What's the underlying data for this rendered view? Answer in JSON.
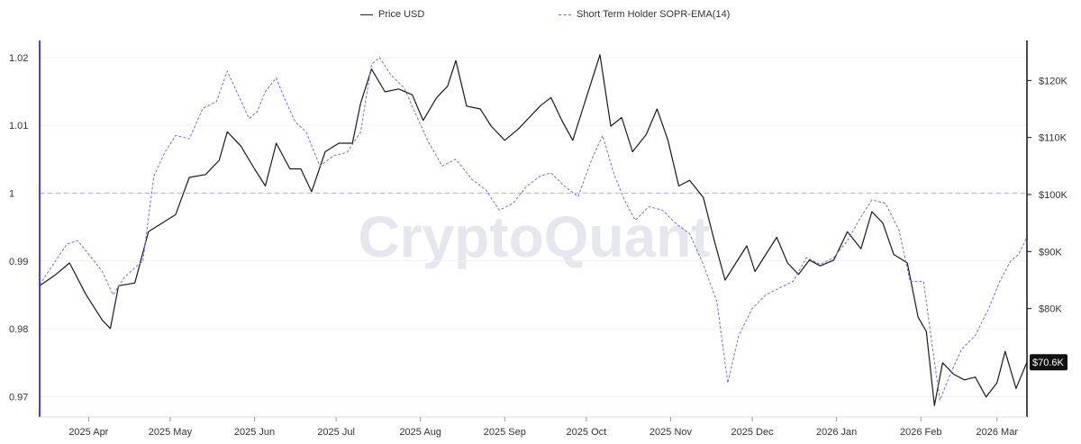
{
  "legend": {
    "price_label": "Price USD",
    "sopr_label": "Short Term Holder SOPR-EMA(14)"
  },
  "watermark": "CryptoQuant",
  "last_price_label": "$70.6K",
  "colors": {
    "price": "#1a1a1a",
    "sopr": "#7b6fd6",
    "reference": "#b9b4e0",
    "axis": "#4a3fd4"
  },
  "chart_data": {
    "type": "line",
    "x_range": [
      "2025-03-14",
      "2026-03-12"
    ],
    "x_tick_labels": [
      "2025 Apr",
      "2025 May",
      "2025 Jun",
      "2025 Jul",
      "2025 Aug",
      "2025 Sep",
      "2025 Oct",
      "2025 Nov",
      "2025 Dec",
      "2026 Jan",
      "2026 Feb",
      "2026 Mar"
    ],
    "x_tick_dates": [
      "2025-04-01",
      "2025-05-01",
      "2025-06-01",
      "2025-07-01",
      "2025-08-01",
      "2025-09-01",
      "2025-10-01",
      "2025-11-01",
      "2025-12-01",
      "2026-01-01",
      "2026-02-01",
      "2026-03-01"
    ],
    "y_left": {
      "label": "",
      "range": [
        0.967,
        1.0225
      ],
      "ticks": [
        0.97,
        0.98,
        0.99,
        1,
        1.01,
        1.02
      ],
      "tick_labels": [
        "0.97",
        "0.98",
        "0.99",
        "1",
        "1.01",
        "1.02"
      ]
    },
    "y_right": {
      "label": "",
      "range": [
        61000,
        127000
      ],
      "ticks": [
        80000,
        90000,
        100000,
        110000,
        120000
      ],
      "tick_labels": [
        "$80K",
        "$90K",
        "$100K",
        "$110K",
        "$120K"
      ]
    },
    "reference_line": {
      "axis": "left",
      "value": 1
    },
    "series": [
      {
        "name": "Price USD",
        "axis": "right",
        "style": "solid",
        "points": [
          [
            "2025-03-14",
            84000
          ],
          [
            "2025-03-20",
            86000
          ],
          [
            "2025-03-25",
            88000
          ],
          [
            "2025-03-31",
            82500
          ],
          [
            "2025-04-06",
            78000
          ],
          [
            "2025-04-09",
            76500
          ],
          [
            "2025-04-12",
            84000
          ],
          [
            "2025-04-18",
            84500
          ],
          [
            "2025-04-23",
            93500
          ],
          [
            "2025-04-28",
            95000
          ],
          [
            "2025-05-03",
            96500
          ],
          [
            "2025-05-08",
            103000
          ],
          [
            "2025-05-14",
            103500
          ],
          [
            "2025-05-19",
            106000
          ],
          [
            "2025-05-22",
            111000
          ],
          [
            "2025-05-27",
            108500
          ],
          [
            "2025-06-01",
            104500
          ],
          [
            "2025-06-05",
            101500
          ],
          [
            "2025-06-09",
            109000
          ],
          [
            "2025-06-14",
            104500
          ],
          [
            "2025-06-18",
            104500
          ],
          [
            "2025-06-22",
            100500
          ],
          [
            "2025-06-27",
            107500
          ],
          [
            "2025-07-02",
            109000
          ],
          [
            "2025-07-07",
            109000
          ],
          [
            "2025-07-10",
            116000
          ],
          [
            "2025-07-14",
            122000
          ],
          [
            "2025-07-19",
            118000
          ],
          [
            "2025-07-24",
            118500
          ],
          [
            "2025-07-29",
            117500
          ],
          [
            "2025-08-02",
            113000
          ],
          [
            "2025-08-07",
            117000
          ],
          [
            "2025-08-11",
            119000
          ],
          [
            "2025-08-14",
            123500
          ],
          [
            "2025-08-18",
            115500
          ],
          [
            "2025-08-23",
            115000
          ],
          [
            "2025-08-27",
            112000
          ],
          [
            "2025-09-01",
            109500
          ],
          [
            "2025-09-06",
            111500
          ],
          [
            "2025-09-10",
            113500
          ],
          [
            "2025-09-14",
            115500
          ],
          [
            "2025-09-18",
            117000
          ],
          [
            "2025-09-22",
            113000
          ],
          [
            "2025-09-26",
            109500
          ],
          [
            "2025-10-01",
            117000
          ],
          [
            "2025-10-06",
            124500
          ],
          [
            "2025-10-10",
            112000
          ],
          [
            "2025-10-14",
            113500
          ],
          [
            "2025-10-18",
            107500
          ],
          [
            "2025-10-23",
            110500
          ],
          [
            "2025-10-27",
            115000
          ],
          [
            "2025-10-31",
            109500
          ],
          [
            "2025-11-04",
            101500
          ],
          [
            "2025-11-08",
            102500
          ],
          [
            "2025-11-13",
            99500
          ],
          [
            "2025-11-17",
            92000
          ],
          [
            "2025-11-21",
            85000
          ],
          [
            "2025-11-25",
            88000
          ],
          [
            "2025-11-29",
            91000
          ],
          [
            "2025-12-02",
            86500
          ],
          [
            "2025-12-06",
            89500
          ],
          [
            "2025-12-10",
            92500
          ],
          [
            "2025-12-14",
            88000
          ],
          [
            "2025-12-18",
            86000
          ],
          [
            "2025-12-22",
            88500
          ],
          [
            "2025-12-26",
            87500
          ],
          [
            "2025-12-31",
            88500
          ],
          [
            "2026-01-05",
            93500
          ],
          [
            "2026-01-10",
            90500
          ],
          [
            "2026-01-14",
            97000
          ],
          [
            "2026-01-18",
            95000
          ],
          [
            "2026-01-22",
            89500
          ],
          [
            "2026-01-27",
            88000
          ],
          [
            "2026-01-31",
            78500
          ],
          [
            "2026-02-03",
            76000
          ],
          [
            "2026-02-06",
            63000
          ],
          [
            "2026-02-09",
            70500
          ],
          [
            "2026-02-13",
            68500
          ],
          [
            "2026-02-17",
            67500
          ],
          [
            "2026-02-21",
            68000
          ],
          [
            "2026-02-25",
            64500
          ],
          [
            "2026-03-01",
            67000
          ],
          [
            "2026-03-04",
            72500
          ],
          [
            "2026-03-08",
            66000
          ],
          [
            "2026-03-12",
            70600
          ]
        ]
      },
      {
        "name": "Short Term Holder SOPR-EMA(14)",
        "axis": "left",
        "style": "dashed",
        "points": [
          [
            "2025-03-14",
            0.9865
          ],
          [
            "2025-03-19",
            0.9895
          ],
          [
            "2025-03-24",
            0.9925
          ],
          [
            "2025-03-28",
            0.993
          ],
          [
            "2025-04-02",
            0.9905
          ],
          [
            "2025-04-06",
            0.9885
          ],
          [
            "2025-04-10",
            0.985
          ],
          [
            "2025-04-14",
            0.9875
          ],
          [
            "2025-04-18",
            0.989
          ],
          [
            "2025-04-21",
            0.99
          ],
          [
            "2025-04-25",
            1.0025
          ],
          [
            "2025-04-29",
            1.006
          ],
          [
            "2025-05-03",
            1.0085
          ],
          [
            "2025-05-08",
            1.008
          ],
          [
            "2025-05-13",
            1.0125
          ],
          [
            "2025-05-18",
            1.0135
          ],
          [
            "2025-05-22",
            1.018
          ],
          [
            "2025-05-26",
            1.0145
          ],
          [
            "2025-05-30",
            1.011
          ],
          [
            "2025-06-02",
            1.012
          ],
          [
            "2025-06-05",
            1.015
          ],
          [
            "2025-06-09",
            1.017
          ],
          [
            "2025-06-12",
            1.014
          ],
          [
            "2025-06-16",
            1.0105
          ],
          [
            "2025-06-20",
            1.009
          ],
          [
            "2025-06-25",
            1.004
          ],
          [
            "2025-06-30",
            1.0055
          ],
          [
            "2025-07-05",
            1.006
          ],
          [
            "2025-07-10",
            1.009
          ],
          [
            "2025-07-14",
            1.019
          ],
          [
            "2025-07-17",
            1.02
          ],
          [
            "2025-07-21",
            1.0175
          ],
          [
            "2025-07-26",
            1.0155
          ],
          [
            "2025-07-31",
            1.011
          ],
          [
            "2025-08-04",
            1.0075
          ],
          [
            "2025-08-09",
            1.004
          ],
          [
            "2025-08-14",
            1.005
          ],
          [
            "2025-08-20",
            1.002
          ],
          [
            "2025-08-25",
            1.0005
          ],
          [
            "2025-08-30",
            0.9975
          ],
          [
            "2025-09-04",
            0.9985
          ],
          [
            "2025-09-09",
            1.001
          ],
          [
            "2025-09-14",
            1.0025
          ],
          [
            "2025-09-18",
            1.003
          ],
          [
            "2025-09-23",
            1.001
          ],
          [
            "2025-09-28",
            0.9995
          ],
          [
            "2025-10-03",
            1.005
          ],
          [
            "2025-10-07",
            1.0085
          ],
          [
            "2025-10-11",
            1.003
          ],
          [
            "2025-10-15",
            0.999
          ],
          [
            "2025-10-19",
            0.996
          ],
          [
            "2025-10-24",
            0.998
          ],
          [
            "2025-10-29",
            0.9975
          ],
          [
            "2025-11-03",
            0.9955
          ],
          [
            "2025-11-08",
            0.994
          ],
          [
            "2025-11-13",
            0.9895
          ],
          [
            "2025-11-18",
            0.984
          ],
          [
            "2025-11-22",
            0.972
          ],
          [
            "2025-11-26",
            0.979
          ],
          [
            "2025-12-01",
            0.983
          ],
          [
            "2025-12-06",
            0.985
          ],
          [
            "2025-12-11",
            0.986
          ],
          [
            "2025-12-16",
            0.987
          ],
          [
            "2025-12-21",
            0.9905
          ],
          [
            "2025-12-26",
            0.9895
          ],
          [
            "2025-12-31",
            0.9905
          ],
          [
            "2026-01-05",
            0.993
          ],
          [
            "2026-01-10",
            0.9965
          ],
          [
            "2026-01-14",
            0.999
          ],
          [
            "2026-01-19",
            0.9985
          ],
          [
            "2026-01-24",
            0.9945
          ],
          [
            "2026-01-28",
            0.987
          ],
          [
            "2026-02-02",
            0.987
          ],
          [
            "2026-02-05",
            0.978
          ],
          [
            "2026-02-08",
            0.9695
          ],
          [
            "2026-02-12",
            0.9735
          ],
          [
            "2026-02-16",
            0.977
          ],
          [
            "2026-02-21",
            0.979
          ],
          [
            "2026-02-26",
            0.983
          ],
          [
            "2026-03-02",
            0.987
          ],
          [
            "2026-03-06",
            0.99
          ],
          [
            "2026-03-09",
            0.991
          ],
          [
            "2026-03-12",
            0.9935
          ]
        ]
      }
    ]
  }
}
